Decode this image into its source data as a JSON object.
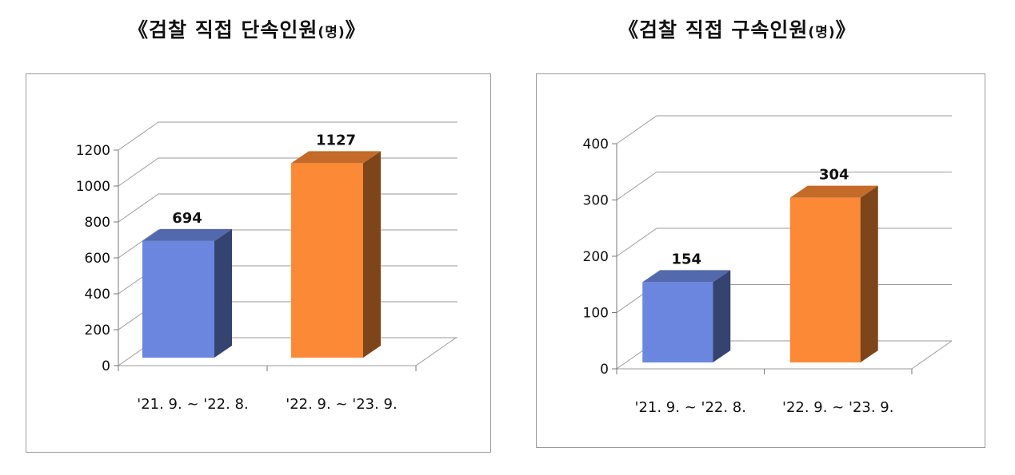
{
  "chart_data": [
    {
      "type": "bar",
      "title": "《검찰 직접 단속인원",
      "title_unit": "(명)",
      "title_close": "》",
      "categories": [
        "'21. 9. ~ '22. 8.",
        "'22. 9. ~ '23. 9."
      ],
      "values": [
        694,
        1127
      ],
      "bar_colors": [
        "#6a86df",
        "#fb8935"
      ],
      "yticks": [
        "0",
        "200",
        "400",
        "600",
        "800",
        "1000",
        "1200"
      ],
      "ylim": [
        0,
        1200
      ],
      "grid": true
    },
    {
      "type": "bar",
      "title": "《검찰 직접 구속인원",
      "title_unit": "(명)",
      "title_close": "》",
      "categories": [
        "'21. 9. ~ '22. 8.",
        "'22. 9. ~ '23. 9."
      ],
      "values": [
        154,
        304
      ],
      "bar_colors": [
        "#6a86df",
        "#fb8935"
      ],
      "yticks": [
        "0",
        "100",
        "200",
        "300",
        "400"
      ],
      "ylim": [
        0,
        400
      ],
      "grid": true
    }
  ]
}
